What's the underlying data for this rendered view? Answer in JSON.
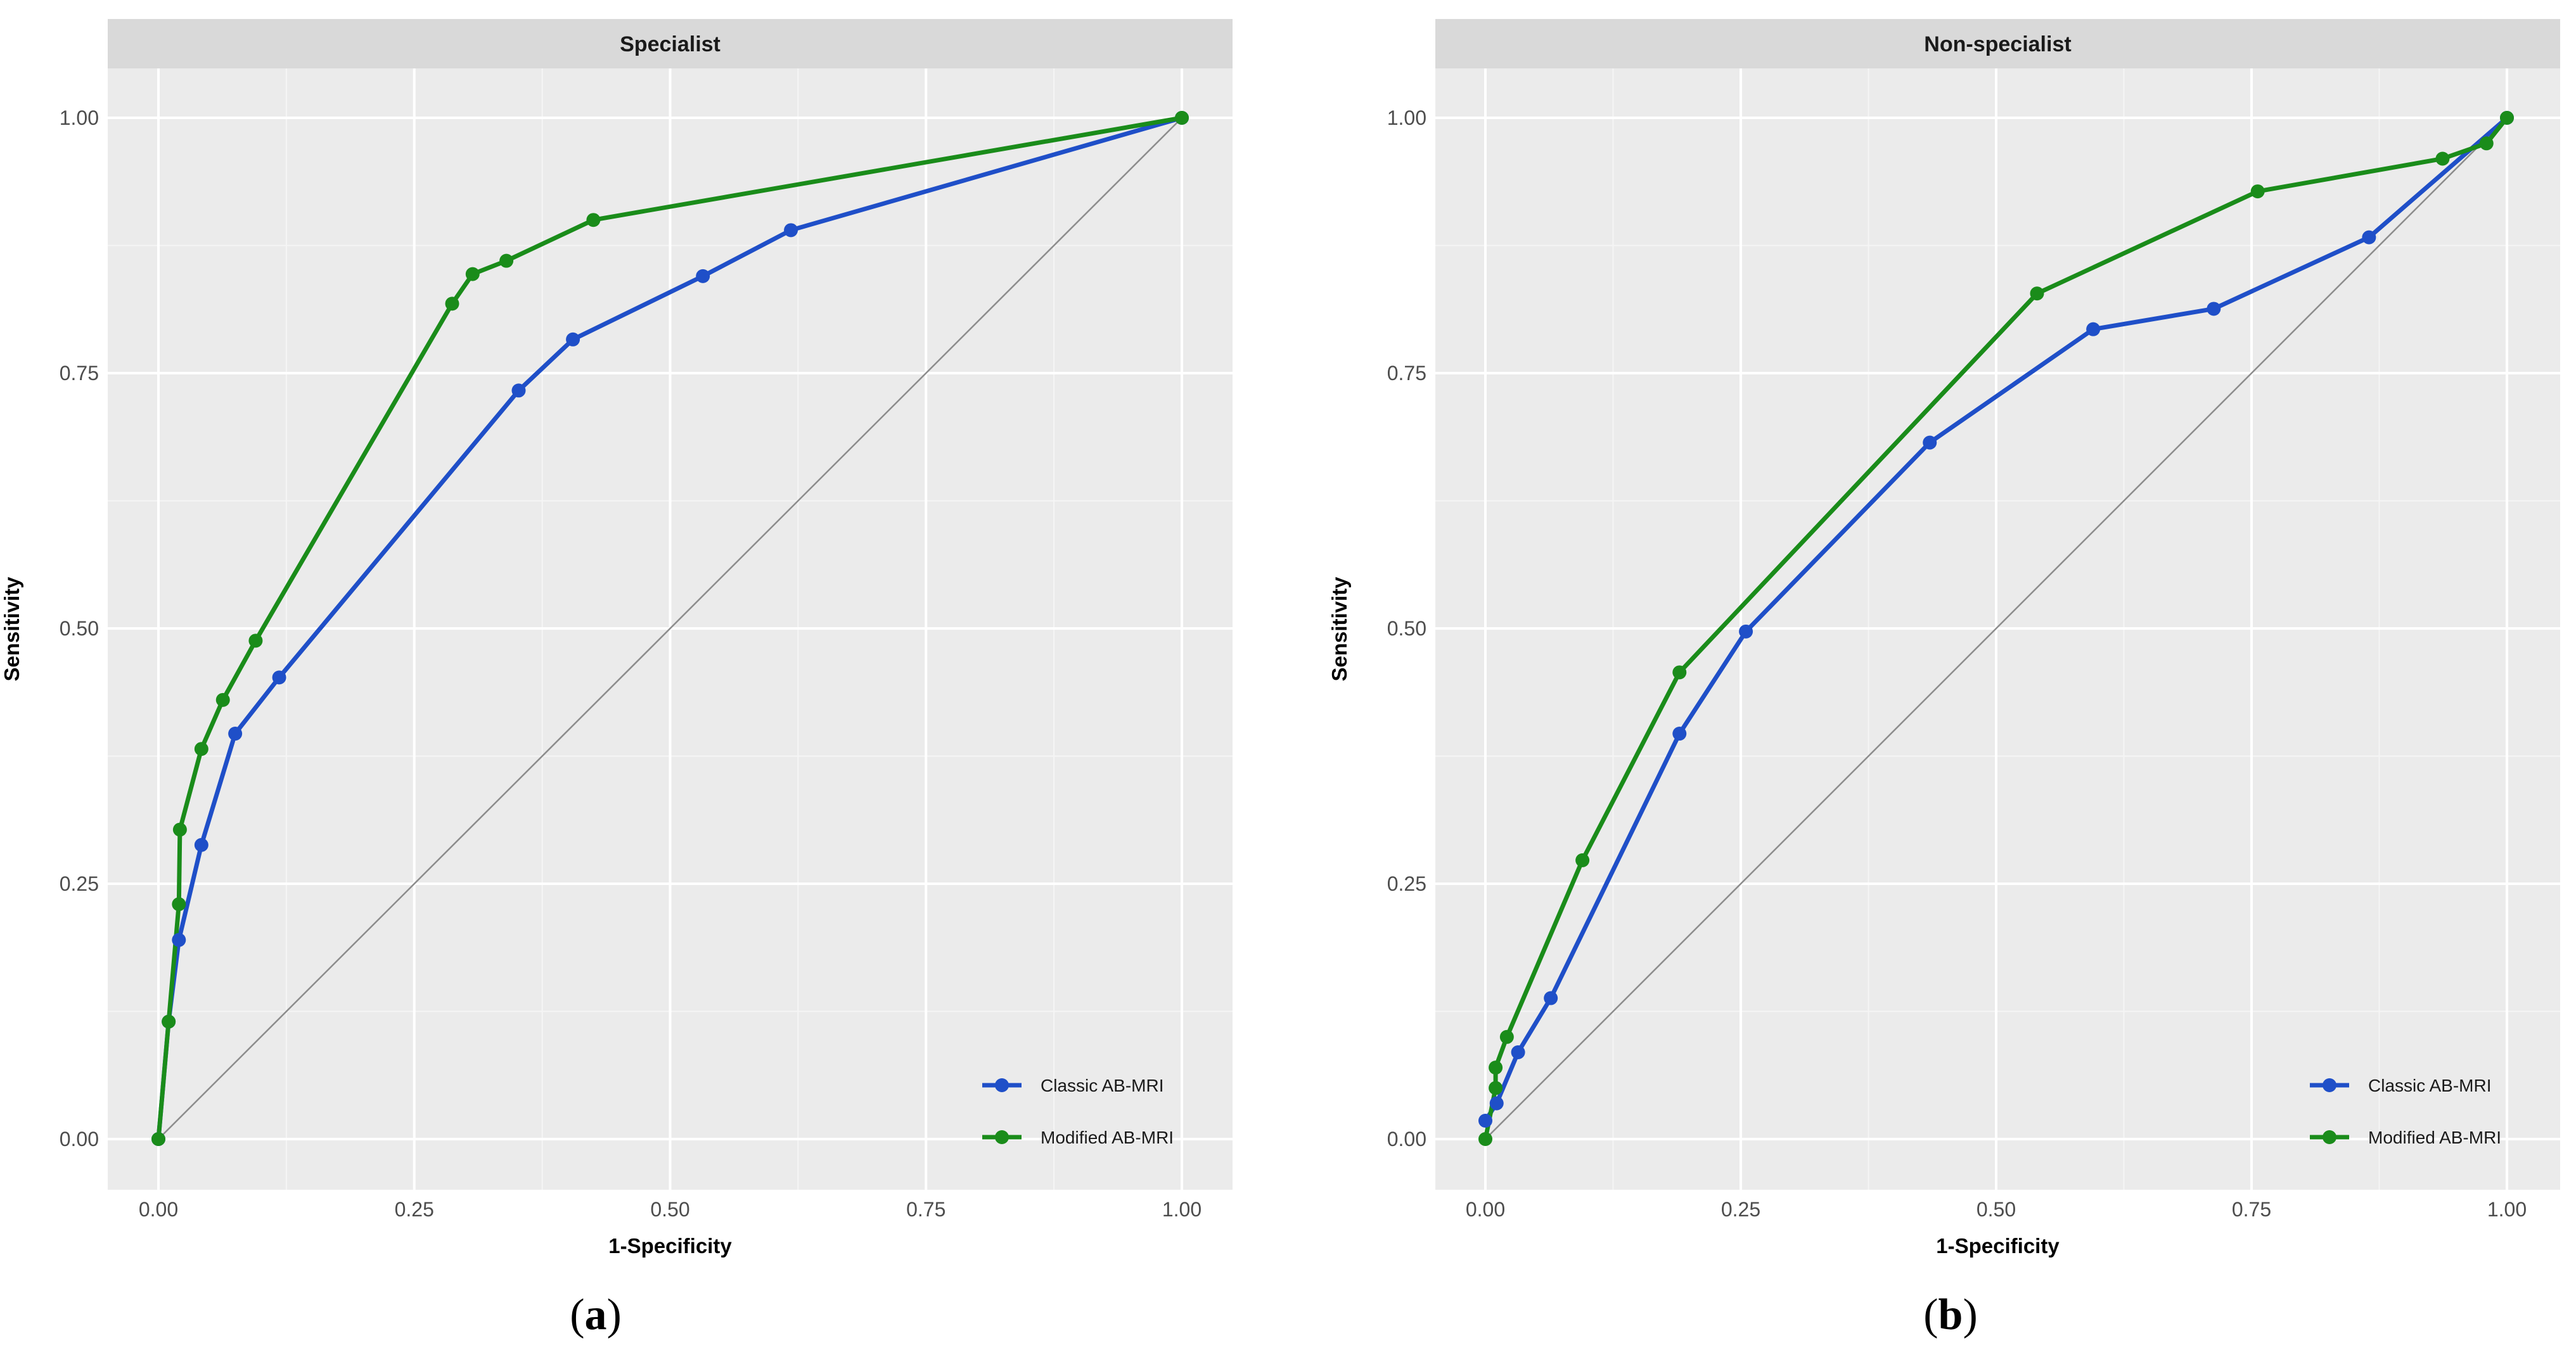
{
  "chart_data": [
    {
      "type": "line",
      "panel_label": "Specialist",
      "caption": {
        "open": "(",
        "letter": "a",
        "close": ")"
      },
      "xlabel": "1-Specificity",
      "ylabel": "Sensitivity",
      "xlim": [
        0,
        1
      ],
      "ylim": [
        0,
        1
      ],
      "x_ticks": [
        0,
        0.25,
        0.5,
        0.75,
        1
      ],
      "x_tick_labels": [
        "0.00",
        "0.25",
        "0.50",
        "0.75",
        "1.00"
      ],
      "y_ticks": [
        0,
        0.25,
        0.5,
        0.75,
        1
      ],
      "y_tick_labels": [
        "0.00",
        "0.25",
        "0.50",
        "0.75",
        "1.00"
      ],
      "grid": true,
      "reference_line": [
        [
          0,
          0
        ],
        [
          1,
          1
        ]
      ],
      "legend_position": "bottom-right",
      "series": [
        {
          "name": "Classic AB-MRI",
          "color": "#1f4fc8",
          "x": [
            0,
            0.01,
            0.02,
            0.042,
            0.075,
            0.118,
            0.352,
            0.405,
            0.532,
            0.618,
            1.0
          ],
          "y": [
            0,
            0.115,
            0.195,
            0.288,
            0.397,
            0.452,
            0.733,
            0.783,
            0.845,
            0.89,
            1.0
          ]
        },
        {
          "name": "Modified AB-MRI",
          "color": "#1a8c1a",
          "x": [
            0,
            0.01,
            0.02,
            0.021,
            0.042,
            0.063,
            0.095,
            0.287,
            0.307,
            0.34,
            0.425,
            1.0
          ],
          "y": [
            0,
            0.115,
            0.23,
            0.303,
            0.382,
            0.43,
            0.488,
            0.818,
            0.847,
            0.86,
            0.9,
            1.0
          ]
        }
      ]
    },
    {
      "type": "line",
      "panel_label": "Non-specialist",
      "caption": {
        "open": "(",
        "letter": "b",
        "close": ")"
      },
      "xlabel": "1-Specificity",
      "ylabel": "Sensitivity",
      "xlim": [
        0,
        1
      ],
      "ylim": [
        0,
        1
      ],
      "x_ticks": [
        0,
        0.25,
        0.5,
        0.75,
        1
      ],
      "x_tick_labels": [
        "0.00",
        "0.25",
        "0.50",
        "0.75",
        "1.00"
      ],
      "y_ticks": [
        0,
        0.25,
        0.5,
        0.75,
        1
      ],
      "y_tick_labels": [
        "0.00",
        "0.25",
        "0.50",
        "0.75",
        "1.00"
      ],
      "grid": true,
      "reference_line": [
        [
          0,
          0
        ],
        [
          1,
          1
        ]
      ],
      "legend_position": "bottom-right",
      "series": [
        {
          "name": "Classic AB-MRI",
          "color": "#1f4fc8",
          "x": [
            0,
            0.011,
            0.032,
            0.064,
            0.19,
            0.255,
            0.435,
            0.595,
            0.713,
            0.865,
            1.0
          ],
          "y": [
            0.018,
            0.035,
            0.085,
            0.138,
            0.397,
            0.497,
            0.682,
            0.793,
            0.813,
            0.883,
            1.0
          ]
        },
        {
          "name": "Modified AB-MRI",
          "color": "#1a8c1a",
          "x": [
            0,
            0.01,
            0.01,
            0.021,
            0.095,
            0.19,
            0.54,
            0.756,
            0.937,
            0.98,
            1.0
          ],
          "y": [
            0,
            0.05,
            0.07,
            0.1,
            0.273,
            0.457,
            0.828,
            0.928,
            0.96,
            0.975,
            1.0
          ]
        }
      ]
    }
  ]
}
